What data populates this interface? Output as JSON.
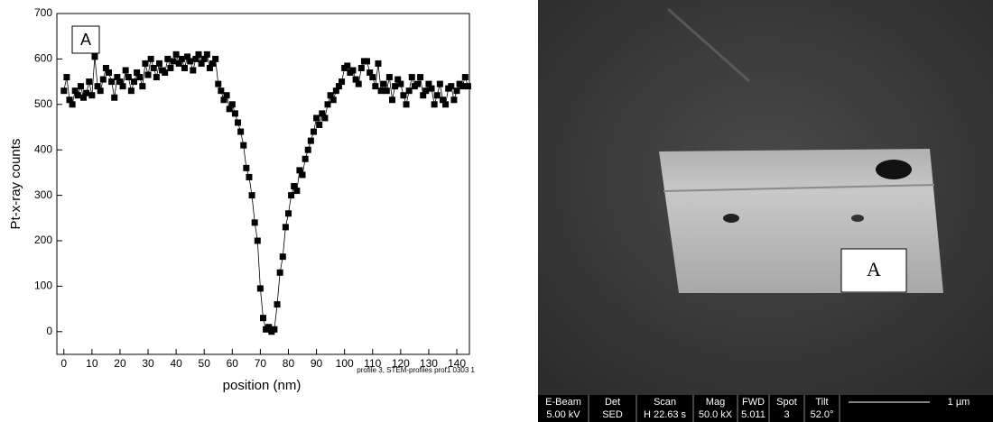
{
  "chart_data": {
    "type": "line",
    "panel_label": "A",
    "x_label": "position (nm)",
    "y_label": "Pt-x-ray counts",
    "annotation": "profile 3, STEM-profiles prof1 0303 1",
    "color": "#000000",
    "marker": "square",
    "x": [
      0,
      1,
      2,
      3,
      4,
      5,
      6,
      7,
      8,
      9,
      10,
      11,
      12,
      13,
      14,
      15,
      16,
      17,
      18,
      19,
      20,
      21,
      22,
      23,
      24,
      25,
      26,
      27,
      28,
      29,
      30,
      31,
      32,
      33,
      34,
      35,
      36,
      37,
      38,
      39,
      40,
      41,
      42,
      43,
      44,
      45,
      46,
      47,
      48,
      49,
      50,
      51,
      52,
      53,
      54,
      55,
      56,
      57,
      58,
      59,
      60,
      61,
      62,
      63,
      64,
      65,
      66,
      67,
      68,
      69,
      70,
      71,
      72,
      73,
      74,
      75,
      76,
      77,
      78,
      79,
      80,
      81,
      82,
      83,
      84,
      85,
      86,
      87,
      88,
      89,
      90,
      91,
      92,
      93,
      94,
      95,
      96,
      97,
      98,
      99,
      100,
      101,
      102,
      103,
      104,
      105,
      106,
      107,
      108,
      109,
      110,
      111,
      112,
      113,
      114,
      115,
      116,
      117,
      118,
      119,
      120,
      121,
      122,
      123,
      124,
      125,
      126,
      127,
      128,
      129,
      130,
      131,
      132,
      133,
      134,
      135,
      136,
      137,
      138,
      139,
      140,
      141,
      142,
      143,
      144
    ],
    "values": [
      530,
      560,
      510,
      500,
      530,
      520,
      540,
      515,
      525,
      550,
      520,
      605,
      540,
      530,
      555,
      580,
      570,
      550,
      515,
      560,
      550,
      540,
      575,
      560,
      530,
      550,
      570,
      560,
      540,
      590,
      565,
      600,
      580,
      560,
      590,
      575,
      570,
      600,
      580,
      595,
      610,
      590,
      600,
      580,
      605,
      595,
      575,
      600,
      610,
      590,
      600,
      610,
      580,
      590,
      600,
      545,
      530,
      510,
      520,
      490,
      500,
      480,
      460,
      440,
      410,
      360,
      340,
      300,
      240,
      200,
      95,
      30,
      5,
      10,
      0,
      5,
      60,
      130,
      165,
      230,
      260,
      300,
      320,
      310,
      355,
      345,
      380,
      400,
      420,
      440,
      470,
      455,
      480,
      470,
      500,
      520,
      510,
      530,
      540,
      550,
      580,
      585,
      570,
      575,
      555,
      545,
      580,
      595,
      595,
      570,
      560,
      540,
      590,
      530,
      545,
      530,
      560,
      510,
      540,
      555,
      545,
      520,
      500,
      530,
      560,
      540,
      545,
      560,
      520,
      530,
      545,
      535,
      500,
      520,
      545,
      510,
      500,
      535,
      540,
      510,
      530,
      545,
      540,
      560,
      540
    ],
    "xlim": [
      -2.5,
      144.5
    ],
    "ylim": [
      -50,
      700
    ],
    "xticks": [
      0,
      10,
      20,
      30,
      40,
      50,
      60,
      70,
      80,
      90,
      100,
      110,
      120,
      130,
      140
    ],
    "yticks": [
      0,
      100,
      200,
      300,
      400,
      500,
      600,
      700
    ]
  },
  "image_panel": {
    "label": "A",
    "scale_bar": "1 µm",
    "info_bar": [
      {
        "header": "E-Beam",
        "value": "5.00 kV"
      },
      {
        "header": "Det",
        "value": "SED"
      },
      {
        "header": "Scan",
        "value": "H 22.63 s"
      },
      {
        "header": "Mag",
        "value": "50.0 kX"
      },
      {
        "header": "FWD",
        "value": "5.011"
      },
      {
        "header": "Spot",
        "value": "3"
      },
      {
        "header": "Tilt",
        "value": "52.0°"
      }
    ]
  }
}
